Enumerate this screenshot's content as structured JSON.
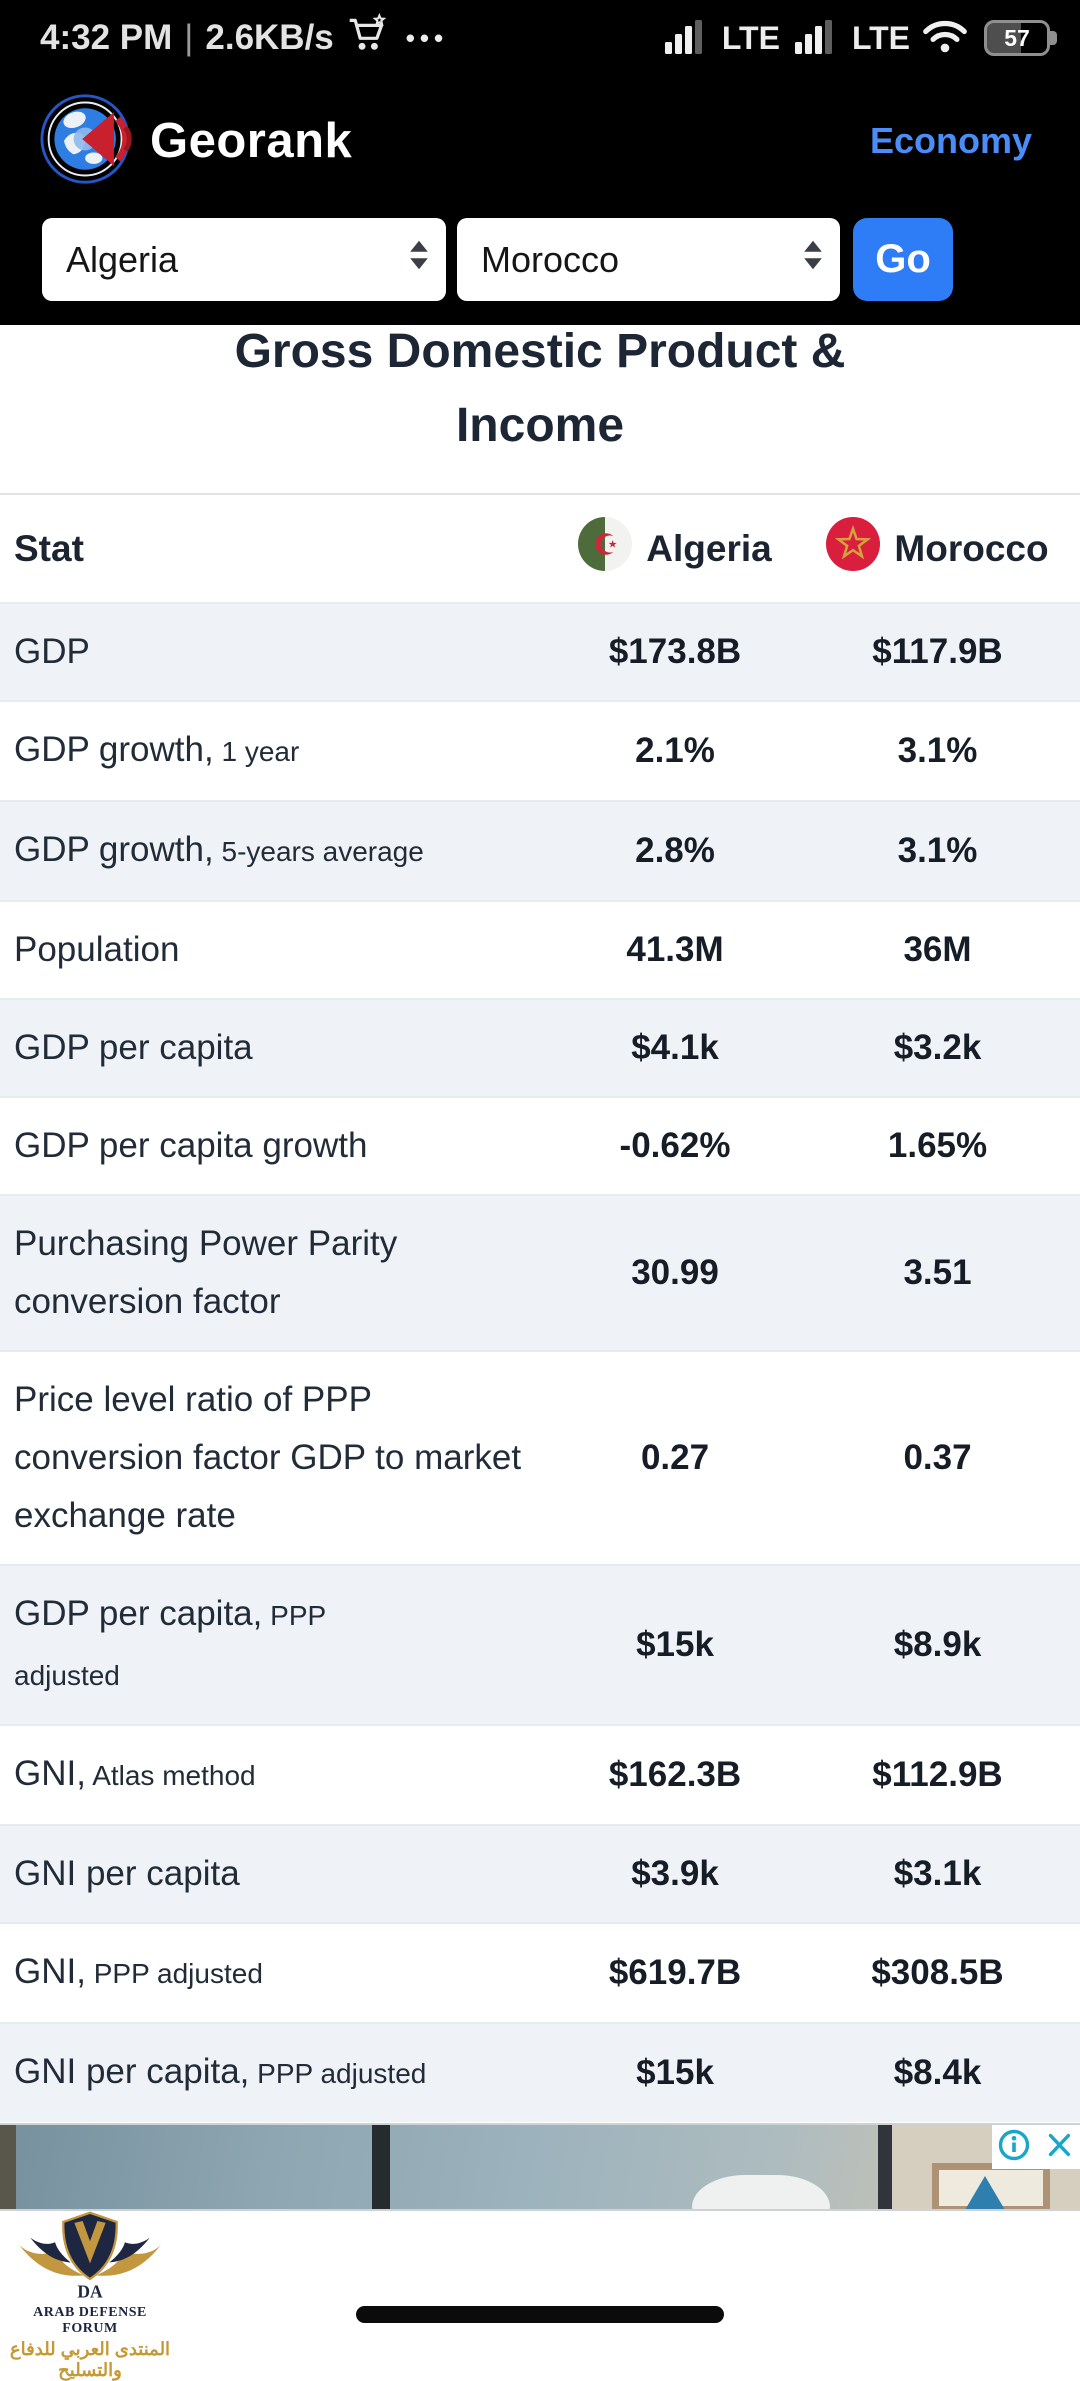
{
  "colors": {
    "accent_blue": "#2f7df6",
    "link_blue": "#4b8df8",
    "row_alt_bg": "#eff3f8",
    "title_text": "#1d2634",
    "algeria_green": "#4d6b3b",
    "algeria_red": "#c62b3a",
    "morocco_red": "#d91e3e",
    "morocco_star_gold": "#d4a33c",
    "adchoices_cyan": "#18a6c9",
    "watermark_gold": "#c59a33",
    "watermark_navy": "#1c2440"
  },
  "status_bar": {
    "time": "4:32 PM",
    "divider": "|",
    "net_speed": "2.6KB/s",
    "menu_dots": "•••",
    "network1": "LTE",
    "network2": "LTE",
    "battery_percent": "57"
  },
  "header": {
    "brand": "Georank",
    "nav": "Economy"
  },
  "controls": {
    "country1": "Algeria",
    "country2": "Morocco",
    "go": "Go"
  },
  "main": {
    "title": "Gross Domestic Product & Income"
  },
  "table": {
    "header": {
      "stat": "Stat",
      "country1": "Algeria",
      "country2": "Morocco"
    },
    "rows": [
      {
        "label": "GDP",
        "sub": "",
        "algeria": "$173.8B",
        "morocco": "$117.9B"
      },
      {
        "label": "GDP growth,",
        "sub": "1 year",
        "algeria": "2.1%",
        "morocco": "3.1%"
      },
      {
        "label": "GDP growth,",
        "sub": "5-years average",
        "algeria": "2.8%",
        "morocco": "3.1%"
      },
      {
        "label": "Population",
        "sub": "",
        "algeria": "41.3M",
        "morocco": "36M"
      },
      {
        "label": "GDP per capita",
        "sub": "",
        "algeria": "$4.1k",
        "morocco": "$3.2k"
      },
      {
        "label": "GDP per capita growth",
        "sub": "",
        "algeria": "-0.62%",
        "morocco": "1.65%"
      },
      {
        "label": "Purchasing Power Parity conversion factor",
        "sub": "",
        "algeria": "30.99",
        "morocco": "3.51"
      },
      {
        "label": "Price level ratio of PPP conversion factor GDP to market exchange rate",
        "sub": "",
        "algeria": "0.27",
        "morocco": "0.37"
      },
      {
        "label": "GDP per capita,",
        "sub": "PPP adjusted",
        "algeria": "$15k",
        "morocco": "$8.9k"
      },
      {
        "label": "GNI,",
        "sub": "Atlas method",
        "algeria": "$162.3B",
        "morocco": "$112.9B"
      },
      {
        "label": "GNI per capita",
        "sub": "",
        "algeria": "$3.9k",
        "morocco": "$3.1k"
      },
      {
        "label": "GNI,",
        "sub": "PPP adjusted",
        "algeria": "$619.7B",
        "morocco": "$308.5B"
      },
      {
        "label": "GNI per capita,",
        "sub": "PPP adjusted",
        "algeria": "$15k",
        "morocco": "$8.4k"
      }
    ]
  },
  "watermark": {
    "initials": "DA",
    "name": "ARAB DEFENSE FORUM",
    "arabic": "المنتدى العربي للدفاع والتسليح"
  }
}
